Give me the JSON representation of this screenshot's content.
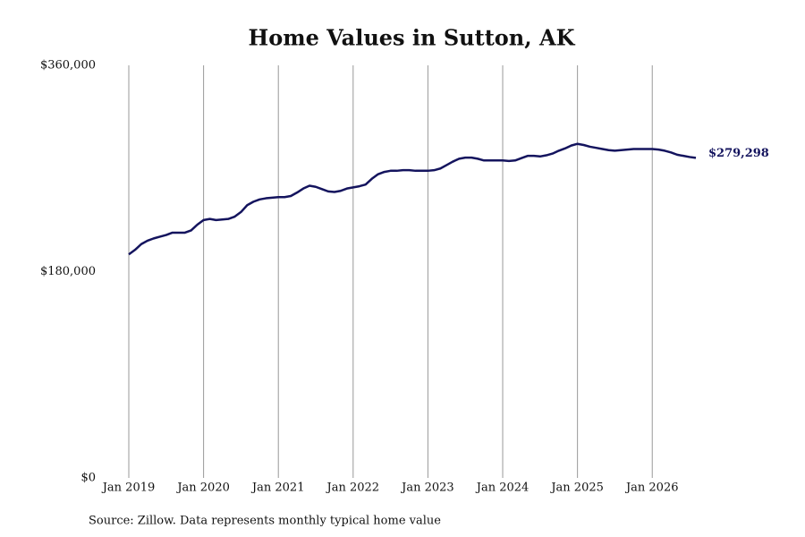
{
  "chart_data": {
    "type": "line",
    "title": "Home Values in Sutton, AK",
    "source": "Source: Zillow. Data represents monthly typical home value",
    "x": [
      "2019-01",
      "2019-02",
      "2019-03",
      "2019-04",
      "2019-05",
      "2019-06",
      "2019-07",
      "2019-08",
      "2019-09",
      "2019-10",
      "2019-11",
      "2019-12",
      "2020-01",
      "2020-02",
      "2020-03",
      "2020-04",
      "2020-05",
      "2020-06",
      "2020-07",
      "2020-08",
      "2020-09",
      "2020-10",
      "2020-11",
      "2020-12",
      "2021-01",
      "2021-02",
      "2021-03",
      "2021-04",
      "2021-05",
      "2021-06",
      "2021-07",
      "2021-08",
      "2021-09",
      "2021-10",
      "2021-11",
      "2021-12",
      "2022-01",
      "2022-02",
      "2022-03",
      "2022-04",
      "2022-05",
      "2022-06",
      "2022-07",
      "2022-08",
      "2022-09",
      "2022-10",
      "2022-11",
      "2022-12",
      "2023-01",
      "2023-02",
      "2023-03",
      "2023-04",
      "2023-05",
      "2023-06",
      "2023-07",
      "2023-08",
      "2023-09",
      "2023-10",
      "2023-11",
      "2023-12",
      "2024-01",
      "2024-02",
      "2024-03",
      "2024-04",
      "2024-05",
      "2024-06",
      "2024-07",
      "2024-08",
      "2024-09",
      "2024-10",
      "2024-11",
      "2024-12",
      "2025-01",
      "2025-02",
      "2025-03",
      "2025-04",
      "2025-05",
      "2025-06",
      "2025-07",
      "2025-08",
      "2025-09",
      "2025-10",
      "2025-11",
      "2025-12",
      "2026-01",
      "2026-02",
      "2026-03",
      "2026-04",
      "2026-05",
      "2026-06",
      "2026-07",
      "2026-08"
    ],
    "series": [
      {
        "name": "Home value",
        "color": "#14145e",
        "values": [
          195000,
          199000,
          204000,
          207000,
          209000,
          210500,
          212000,
          214000,
          214000,
          214000,
          216000,
          221000,
          225000,
          226000,
          225000,
          225500,
          226000,
          228000,
          232000,
          238000,
          241000,
          243000,
          244000,
          244500,
          245000,
          245000,
          246000,
          249000,
          252500,
          255000,
          254000,
          252000,
          250000,
          249500,
          250500,
          252500,
          253500,
          254500,
          256000,
          261000,
          265000,
          267000,
          268000,
          268000,
          268500,
          268500,
          268000,
          268000,
          268000,
          268500,
          270000,
          273000,
          276000,
          278500,
          279500,
          279500,
          278500,
          277000,
          277000,
          277000,
          277000,
          276500,
          277000,
          279000,
          281000,
          281000,
          280500,
          281500,
          283000,
          285500,
          287500,
          290000,
          291500,
          290500,
          289000,
          288000,
          287000,
          286000,
          285500,
          286000,
          286500,
          287000,
          287000,
          287000,
          287000,
          286500,
          285500,
          284000,
          282000,
          281000,
          280000,
          279298
        ],
        "value_labels": [
          null,
          null,
          null,
          null,
          null,
          null,
          null,
          null,
          null,
          null,
          null,
          null,
          null,
          null,
          null,
          null,
          null,
          null,
          null,
          null,
          null,
          null,
          null,
          null,
          null,
          null,
          null,
          null,
          null,
          null,
          null,
          null,
          null,
          null,
          null,
          null,
          null,
          null,
          null,
          null,
          null,
          null,
          null,
          null,
          null,
          null,
          null,
          null,
          null,
          null,
          null,
          null,
          null,
          null,
          null,
          null,
          null,
          null,
          null,
          null,
          null,
          null,
          null,
          null,
          null,
          null,
          null,
          null,
          null,
          null,
          null,
          null,
          null,
          null,
          null,
          null,
          null,
          null,
          null,
          null,
          null,
          null,
          null,
          null,
          null,
          null,
          null,
          null,
          null,
          null,
          null,
          "$279,298"
        ]
      }
    ],
    "xlim": [
      "2019-01",
      "2026-08"
    ],
    "xticks": [
      {
        "value": "2019-01",
        "label": "Jan 2019"
      },
      {
        "value": "2020-01",
        "label": "Jan 2020"
      },
      {
        "value": "2021-01",
        "label": "Jan 2021"
      },
      {
        "value": "2022-01",
        "label": "Jan 2022"
      },
      {
        "value": "2023-01",
        "label": "Jan 2023"
      },
      {
        "value": "2024-01",
        "label": "Jan 2024"
      },
      {
        "value": "2025-01",
        "label": "Jan 2025"
      },
      {
        "value": "2026-01",
        "label": "Jan 2026"
      }
    ],
    "ylim": [
      0,
      360000
    ],
    "yticks": [
      {
        "value": 0,
        "label": "$0"
      },
      {
        "value": 180000,
        "label": "$180,000"
      },
      {
        "value": 360000,
        "label": "$360,000"
      }
    ],
    "grid": "x"
  }
}
